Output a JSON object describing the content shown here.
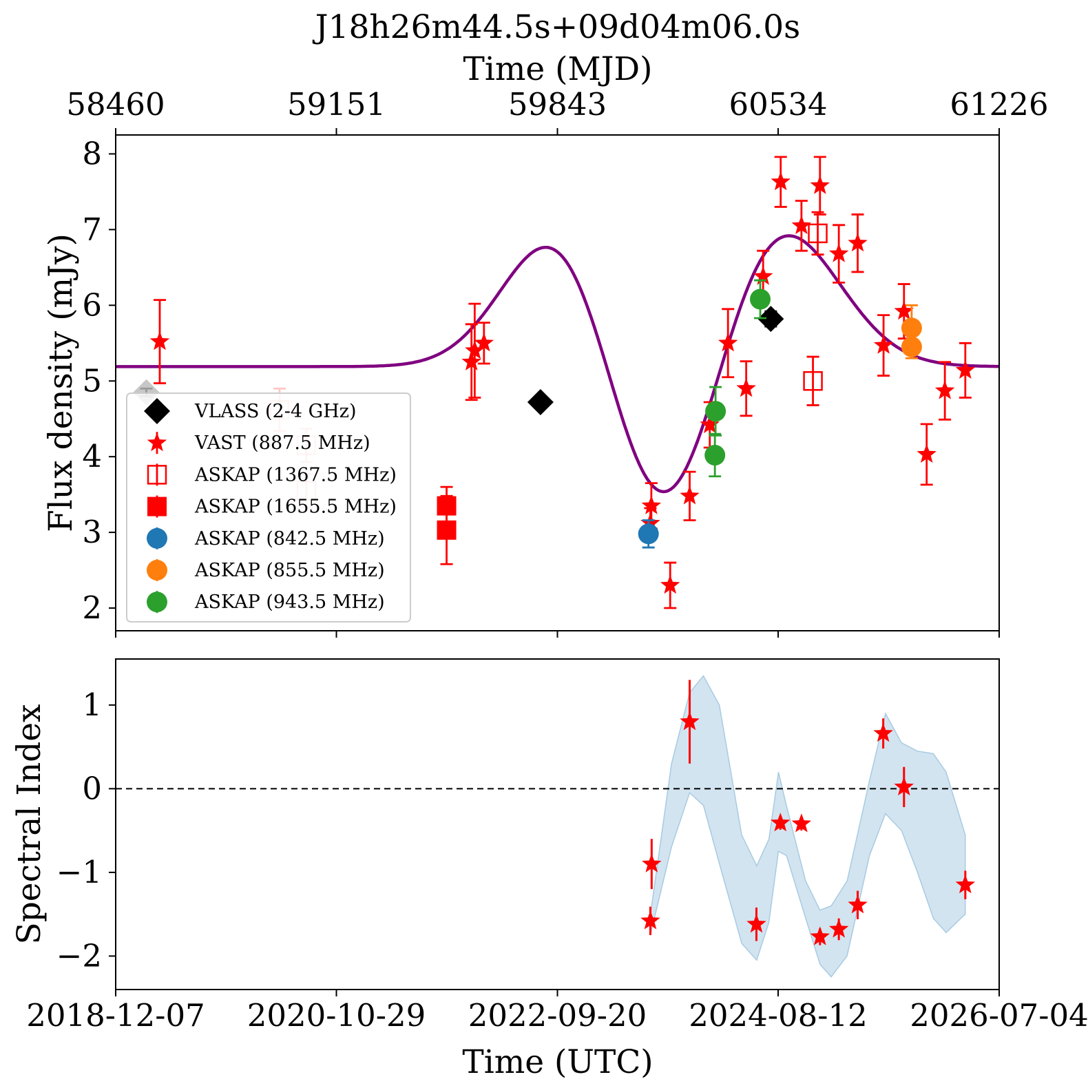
{
  "chart_data": [
    {
      "type": "scatter",
      "title": "J18h26m44.5s+09d04m06.0s",
      "top_xlabel": "Time (MJD)",
      "top_ticks": [
        "58460",
        "59151",
        "59843",
        "60534",
        "61226"
      ],
      "ylabel": "Flux density (mJy)",
      "ylim": [
        1.7,
        8.25
      ],
      "yticks": [
        2,
        3,
        4,
        5,
        6,
        7,
        8
      ],
      "xlim_mjd": [
        58460,
        61226
      ],
      "legend_position": "center-left",
      "series": [
        {
          "name": "VLASS (2-4 GHz)",
          "marker": "diamond",
          "color": "#000000",
          "points": [
            {
              "mjd": 58556,
              "y": 4.85,
              "err": 0.05,
              "faded": true
            },
            {
              "mjd": 59790,
              "y": 4.72,
              "err": 0.05
            },
            {
              "mjd": 60511,
              "y": 5.82,
              "err": 0.1
            }
          ]
        },
        {
          "name": "VAST (887.5 MHz)",
          "marker": "star",
          "color": "#ff0000",
          "points": [
            {
              "mjd": 58598,
              "y": 5.52,
              "err": 0.55
            },
            {
              "mjd": 59574,
              "y": 5.25,
              "err": 0.5
            },
            {
              "mjd": 59584,
              "y": 5.4,
              "err": 0.62
            },
            {
              "mjd": 59613,
              "y": 5.5,
              "err": 0.27
            },
            {
              "mjd": 60137,
              "y": 3.35,
              "err": 0.3
            },
            {
              "mjd": 60134,
              "y": 3.12,
              "err": 0.2
            },
            {
              "mjd": 60196,
              "y": 2.3,
              "err": 0.3
            },
            {
              "mjd": 60257,
              "y": 3.48,
              "err": 0.32
            },
            {
              "mjd": 60320,
              "y": 4.42,
              "err": 0.3
            },
            {
              "mjd": 60377,
              "y": 5.5,
              "err": 0.45
            },
            {
              "mjd": 60434,
              "y": 4.9,
              "err": 0.36
            },
            {
              "mjd": 60487,
              "y": 6.38,
              "err": 0.34
            },
            {
              "mjd": 60542,
              "y": 7.63,
              "err": 0.33
            },
            {
              "mjd": 60607,
              "y": 7.05,
              "err": 0.33
            },
            {
              "mjd": 60665,
              "y": 7.58,
              "err": 0.38
            },
            {
              "mjd": 60724,
              "y": 6.68,
              "err": 0.38
            },
            {
              "mjd": 60783,
              "y": 6.82,
              "err": 0.38
            },
            {
              "mjd": 60864,
              "y": 5.47,
              "err": 0.4
            },
            {
              "mjd": 60928,
              "y": 5.92,
              "err": 0.36
            },
            {
              "mjd": 60999,
              "y": 4.03,
              "err": 0.4
            },
            {
              "mjd": 61056,
              "y": 4.87,
              "err": 0.38
            },
            {
              "mjd": 61120,
              "y": 5.14,
              "err": 0.36
            }
          ]
        },
        {
          "name": "ASKAP (1367.5 MHz)",
          "marker": "open-square",
          "color": "#ff0000",
          "points": [
            {
              "mjd": 58973,
              "y": 4.62,
              "err": 0.28,
              "faded": true
            },
            {
              "mjd": 59057,
              "y": 4.15,
              "err": 0.22,
              "faded": true
            },
            {
              "mjd": 59057,
              "y": 3.55,
              "err": 0.22,
              "faded": true
            },
            {
              "mjd": 60643,
              "y": 5.0,
              "err": 0.32
            },
            {
              "mjd": 60658,
              "y": 6.95,
              "err": 0.28
            }
          ]
        },
        {
          "name": "ASKAP (1655.5 MHz)",
          "marker": "square",
          "color": "#ff0000",
          "points": [
            {
              "mjd": 59496,
              "y": 3.35,
              "err": 0.25
            },
            {
              "mjd": 59496,
              "y": 3.03,
              "err": 0.45
            }
          ]
        },
        {
          "name": "ASKAP (842.5 MHz)",
          "marker": "circle",
          "color": "#1f77b4",
          "points": [
            {
              "mjd": 60128,
              "y": 2.98,
              "err": 0.18
            }
          ]
        },
        {
          "name": "ASKAP (855.5 MHz)",
          "marker": "circle",
          "color": "#ff7f0e",
          "points": [
            {
              "mjd": 60952,
              "y": 5.7,
              "err": 0.3
            },
            {
              "mjd": 60952,
              "y": 5.45,
              "err": 0.15
            }
          ]
        },
        {
          "name": "ASKAP (943.5 MHz)",
          "marker": "circle",
          "color": "#2ca02c",
          "points": [
            {
              "mjd": 60336,
              "y": 4.02,
              "err": 0.28
            },
            {
              "mjd": 60338,
              "y": 4.6,
              "err": 0.32
            },
            {
              "mjd": 60478,
              "y": 6.08,
              "err": 0.25
            }
          ]
        }
      ],
      "model_curve": {
        "color": "#800080",
        "baseline": 5.19,
        "components": [
          {
            "center_mjd": 59860,
            "amplitude": 1.94,
            "sigma": 175
          },
          {
            "center_mjd": 60170,
            "amplitude": -2.4,
            "sigma": 175
          },
          {
            "center_mjd": 60524,
            "amplitude": 1.96,
            "sigma": 190
          }
        ]
      }
    },
    {
      "type": "scatter",
      "ylabel": "Spectral Index",
      "xlabel": "Time (UTC)",
      "ylim": [
        -2.4,
        1.55
      ],
      "yticks": [
        1,
        0,
        -1,
        -2
      ],
      "ytick_labels": [
        "1",
        "0",
        "−1",
        "−2"
      ],
      "x_ticks": [
        "2018-12-07",
        "2020-10-29",
        "2022-09-20",
        "2024-08-12",
        "2026-07-04"
      ],
      "reference_line": {
        "y": 0,
        "style": "dashed",
        "color": "#000000"
      },
      "band": {
        "color": "#1f77b4",
        "upper": [
          {
            "mjd": 60134,
            "y": -1.5
          },
          {
            "mjd": 60200,
            "y": 0.3
          },
          {
            "mjd": 60257,
            "y": 1.15
          },
          {
            "mjd": 60300,
            "y": 1.35
          },
          {
            "mjd": 60350,
            "y": 1.0
          },
          {
            "mjd": 60420,
            "y": -0.55
          },
          {
            "mjd": 60467,
            "y": -0.92
          },
          {
            "mjd": 60505,
            "y": -0.6
          },
          {
            "mjd": 60535,
            "y": 0.2
          },
          {
            "mjd": 60560,
            "y": -0.2
          },
          {
            "mjd": 60620,
            "y": -1.1
          },
          {
            "mjd": 60665,
            "y": -1.45
          },
          {
            "mjd": 60700,
            "y": -1.4
          },
          {
            "mjd": 60750,
            "y": -1.1
          },
          {
            "mjd": 60820,
            "y": 0.1
          },
          {
            "mjd": 60870,
            "y": 0.9
          },
          {
            "mjd": 60920,
            "y": 0.55
          },
          {
            "mjd": 60970,
            "y": 0.45
          },
          {
            "mjd": 61020,
            "y": 0.42
          },
          {
            "mjd": 61060,
            "y": 0.2
          },
          {
            "mjd": 61120,
            "y": -0.55
          }
        ],
        "lower": [
          {
            "mjd": 60134,
            "y": -1.75
          },
          {
            "mjd": 60200,
            "y": -0.7
          },
          {
            "mjd": 60257,
            "y": -0.05
          },
          {
            "mjd": 60300,
            "y": -0.2
          },
          {
            "mjd": 60350,
            "y": -0.9
          },
          {
            "mjd": 60420,
            "y": -1.85
          },
          {
            "mjd": 60467,
            "y": -2.05
          },
          {
            "mjd": 60505,
            "y": -1.6
          },
          {
            "mjd": 60535,
            "y": -0.75
          },
          {
            "mjd": 60560,
            "y": -0.8
          },
          {
            "mjd": 60620,
            "y": -1.55
          },
          {
            "mjd": 60665,
            "y": -2.1
          },
          {
            "mjd": 60700,
            "y": -2.25
          },
          {
            "mjd": 60750,
            "y": -2.0
          },
          {
            "mjd": 60820,
            "y": -0.8
          },
          {
            "mjd": 60870,
            "y": -0.3
          },
          {
            "mjd": 60920,
            "y": -0.5
          },
          {
            "mjd": 60970,
            "y": -1.0
          },
          {
            "mjd": 61020,
            "y": -1.55
          },
          {
            "mjd": 61060,
            "y": -1.72
          },
          {
            "mjd": 61120,
            "y": -1.5
          }
        ]
      },
      "series": [
        {
          "marker": "star",
          "color": "#ff0000",
          "points": [
            {
              "mjd": 60134,
              "y": -1.58,
              "err": 0.17
            },
            {
              "mjd": 60138,
              "y": -0.9,
              "err": 0.3
            },
            {
              "mjd": 60257,
              "y": 0.8,
              "err": 0.5
            },
            {
              "mjd": 60466,
              "y": -1.62,
              "err": 0.2
            },
            {
              "mjd": 60541,
              "y": -0.41,
              "err": 0.08
            },
            {
              "mjd": 60607,
              "y": -0.42,
              "err": 0.08
            },
            {
              "mjd": 60665,
              "y": -1.77,
              "err": 0.1
            },
            {
              "mjd": 60724,
              "y": -1.68,
              "err": 0.13
            },
            {
              "mjd": 60783,
              "y": -1.39,
              "err": 0.17
            },
            {
              "mjd": 60863,
              "y": 0.66,
              "err": 0.18
            },
            {
              "mjd": 60928,
              "y": 0.02,
              "err": 0.24
            },
            {
              "mjd": 61120,
              "y": -1.15,
              "err": 0.17
            }
          ]
        }
      ]
    }
  ]
}
